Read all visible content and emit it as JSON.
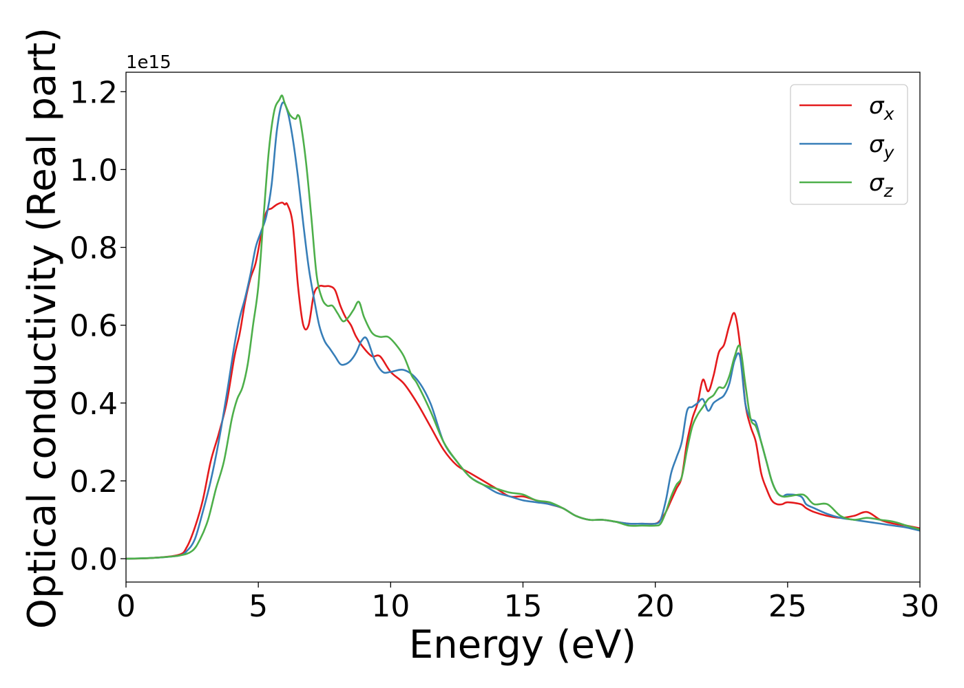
{
  "chart_data": {
    "type": "line",
    "title": "",
    "xlabel": "Energy (eV)",
    "ylabel": "Optical conductivity (Real part)",
    "y_offset_label": "1e15",
    "xlim": [
      0,
      30
    ],
    "ylim": [
      -0.06,
      1.25
    ],
    "x_ticks": [
      0,
      5,
      10,
      15,
      20,
      25,
      30
    ],
    "x_tick_labels": [
      "0",
      "5",
      "10",
      "15",
      "20",
      "25",
      "30"
    ],
    "y_ticks": [
      0.0,
      0.2,
      0.4,
      0.6,
      0.8,
      1.0,
      1.2
    ],
    "y_tick_labels": [
      "0.0",
      "0.2",
      "0.4",
      "0.6",
      "0.8",
      "1.0",
      "1.2"
    ],
    "grid": false,
    "legend_position": "top-right",
    "series": [
      {
        "name": "σ_x",
        "legend_base": "σ",
        "legend_sub": "x",
        "color": "#e41a1c",
        "x": [
          0,
          1,
          2,
          2.3,
          2.6,
          2.9,
          3.2,
          3.5,
          3.8,
          4.1,
          4.3,
          4.5,
          4.7,
          4.9,
          5.1,
          5.3,
          5.5,
          5.7,
          5.9,
          6.0,
          6.1,
          6.3,
          6.5,
          6.7,
          6.9,
          7.1,
          7.3,
          7.5,
          7.7,
          7.9,
          8.1,
          8.3,
          8.5,
          8.7,
          9.0,
          9.3,
          9.6,
          10.0,
          10.5,
          11.0,
          11.5,
          12.0,
          12.5,
          13.0,
          13.5,
          14.0,
          14.5,
          15.0,
          15.5,
          16.0,
          16.5,
          17.0,
          17.5,
          18.0,
          18.5,
          19.0,
          19.5,
          20.0,
          20.2,
          20.4,
          20.6,
          20.8,
          21.0,
          21.2,
          21.4,
          21.6,
          21.8,
          22.0,
          22.2,
          22.4,
          22.6,
          22.8,
          23.0,
          23.2,
          23.4,
          23.6,
          23.8,
          24.0,
          24.2,
          24.4,
          24.6,
          24.8,
          25.0,
          25.5,
          25.7,
          26.0,
          26.5,
          27.0,
          27.5,
          28.0,
          28.5,
          29.0,
          29.5,
          30.0
        ],
        "y": [
          0,
          0.002,
          0.01,
          0.03,
          0.08,
          0.15,
          0.25,
          0.32,
          0.4,
          0.52,
          0.58,
          0.66,
          0.72,
          0.76,
          0.83,
          0.89,
          0.9,
          0.91,
          0.915,
          0.91,
          0.91,
          0.86,
          0.7,
          0.6,
          0.6,
          0.68,
          0.7,
          0.7,
          0.7,
          0.69,
          0.65,
          0.62,
          0.6,
          0.57,
          0.54,
          0.52,
          0.52,
          0.48,
          0.45,
          0.4,
          0.34,
          0.28,
          0.24,
          0.22,
          0.2,
          0.18,
          0.16,
          0.16,
          0.15,
          0.14,
          0.13,
          0.11,
          0.1,
          0.1,
          0.095,
          0.09,
          0.09,
          0.09,
          0.1,
          0.12,
          0.15,
          0.18,
          0.21,
          0.3,
          0.36,
          0.4,
          0.46,
          0.43,
          0.47,
          0.53,
          0.55,
          0.6,
          0.63,
          0.55,
          0.4,
          0.34,
          0.3,
          0.22,
          0.18,
          0.15,
          0.14,
          0.14,
          0.145,
          0.14,
          0.13,
          0.12,
          0.11,
          0.105,
          0.11,
          0.12,
          0.1,
          0.09,
          0.085,
          0.078
        ]
      },
      {
        "name": "σ_y",
        "legend_base": "σ",
        "legend_sub": "y",
        "color": "#377eb8",
        "x": [
          0,
          1,
          2,
          2.3,
          2.6,
          2.9,
          3.2,
          3.5,
          3.8,
          4.1,
          4.3,
          4.5,
          4.7,
          4.9,
          5.1,
          5.3,
          5.5,
          5.7,
          5.9,
          6.1,
          6.3,
          6.5,
          6.7,
          6.9,
          7.1,
          7.3,
          7.5,
          7.7,
          7.9,
          8.1,
          8.3,
          8.5,
          8.7,
          8.9,
          9.1,
          9.4,
          9.7,
          10.0,
          10.5,
          11.0,
          11.5,
          12.0,
          12.5,
          13.0,
          13.5,
          14.0,
          14.5,
          15.0,
          15.5,
          16.0,
          16.5,
          17.0,
          17.5,
          18.0,
          18.5,
          19.0,
          19.5,
          20.0,
          20.2,
          20.4,
          20.6,
          20.8,
          21.0,
          21.2,
          21.4,
          21.6,
          21.8,
          22.0,
          22.2,
          22.4,
          22.6,
          22.8,
          23.0,
          23.2,
          23.4,
          23.6,
          23.8,
          24.0,
          24.2,
          24.4,
          24.6,
          24.8,
          25.0,
          25.5,
          25.7,
          26.0,
          26.5,
          27.0,
          27.5,
          28.0,
          28.5,
          29.0,
          29.5,
          30.0
        ],
        "y": [
          0,
          0.002,
          0.008,
          0.02,
          0.05,
          0.12,
          0.2,
          0.3,
          0.42,
          0.55,
          0.62,
          0.67,
          0.73,
          0.8,
          0.84,
          0.88,
          0.96,
          1.1,
          1.17,
          1.15,
          1.08,
          0.98,
          0.86,
          0.75,
          0.67,
          0.6,
          0.56,
          0.54,
          0.52,
          0.5,
          0.5,
          0.51,
          0.53,
          0.56,
          0.565,
          0.51,
          0.48,
          0.48,
          0.485,
          0.46,
          0.4,
          0.3,
          0.25,
          0.21,
          0.19,
          0.17,
          0.16,
          0.15,
          0.145,
          0.14,
          0.13,
          0.11,
          0.1,
          0.1,
          0.095,
          0.09,
          0.09,
          0.09,
          0.1,
          0.15,
          0.22,
          0.26,
          0.3,
          0.38,
          0.39,
          0.4,
          0.41,
          0.38,
          0.4,
          0.41,
          0.42,
          0.45,
          0.51,
          0.52,
          0.4,
          0.36,
          0.35,
          0.3,
          0.25,
          0.2,
          0.17,
          0.16,
          0.165,
          0.16,
          0.14,
          0.13,
          0.115,
          0.105,
          0.1,
          0.095,
          0.09,
          0.085,
          0.08,
          0.072
        ]
      },
      {
        "name": "σ_z",
        "legend_base": "σ",
        "legend_sub": "z",
        "color": "#4daf4a",
        "x": [
          0,
          1,
          2,
          2.5,
          2.8,
          3.1,
          3.4,
          3.7,
          4.0,
          4.2,
          4.4,
          4.6,
          4.8,
          5.0,
          5.2,
          5.4,
          5.6,
          5.8,
          5.9,
          6.0,
          6.2,
          6.4,
          6.5,
          6.6,
          6.8,
          7.0,
          7.2,
          7.4,
          7.6,
          7.8,
          8.0,
          8.2,
          8.4,
          8.6,
          8.8,
          9.0,
          9.3,
          9.6,
          9.9,
          10.2,
          10.5,
          10.8,
          11.0,
          11.5,
          12.0,
          12.5,
          13.0,
          13.5,
          14.0,
          14.5,
          15.0,
          15.5,
          16.0,
          16.5,
          17.0,
          17.5,
          18.0,
          18.5,
          19.0,
          19.5,
          20.0,
          20.2,
          20.4,
          20.6,
          20.8,
          21.0,
          21.2,
          21.4,
          21.6,
          21.8,
          22.0,
          22.2,
          22.4,
          22.6,
          22.8,
          23.0,
          23.2,
          23.4,
          23.6,
          23.8,
          24.0,
          24.2,
          24.4,
          24.6,
          24.8,
          25.0,
          25.5,
          25.7,
          26.0,
          26.5,
          27.0,
          27.5,
          28.0,
          28.5,
          29.0,
          29.5,
          30.0
        ],
        "y": [
          0,
          0.002,
          0.008,
          0.02,
          0.05,
          0.1,
          0.18,
          0.25,
          0.36,
          0.41,
          0.44,
          0.5,
          0.6,
          0.7,
          0.88,
          1.05,
          1.15,
          1.18,
          1.19,
          1.17,
          1.14,
          1.13,
          1.14,
          1.12,
          1.02,
          0.88,
          0.73,
          0.67,
          0.65,
          0.65,
          0.63,
          0.61,
          0.62,
          0.64,
          0.66,
          0.62,
          0.58,
          0.57,
          0.57,
          0.55,
          0.52,
          0.47,
          0.45,
          0.38,
          0.3,
          0.25,
          0.21,
          0.19,
          0.18,
          0.17,
          0.165,
          0.15,
          0.145,
          0.13,
          0.11,
          0.1,
          0.1,
          0.095,
          0.085,
          0.085,
          0.085,
          0.09,
          0.12,
          0.16,
          0.19,
          0.21,
          0.28,
          0.34,
          0.37,
          0.39,
          0.41,
          0.42,
          0.44,
          0.44,
          0.47,
          0.52,
          0.545,
          0.45,
          0.36,
          0.34,
          0.3,
          0.25,
          0.2,
          0.17,
          0.16,
          0.16,
          0.165,
          0.16,
          0.14,
          0.14,
          0.11,
          0.1,
          0.105,
          0.1,
          0.095,
          0.085,
          0.075
        ]
      }
    ]
  }
}
